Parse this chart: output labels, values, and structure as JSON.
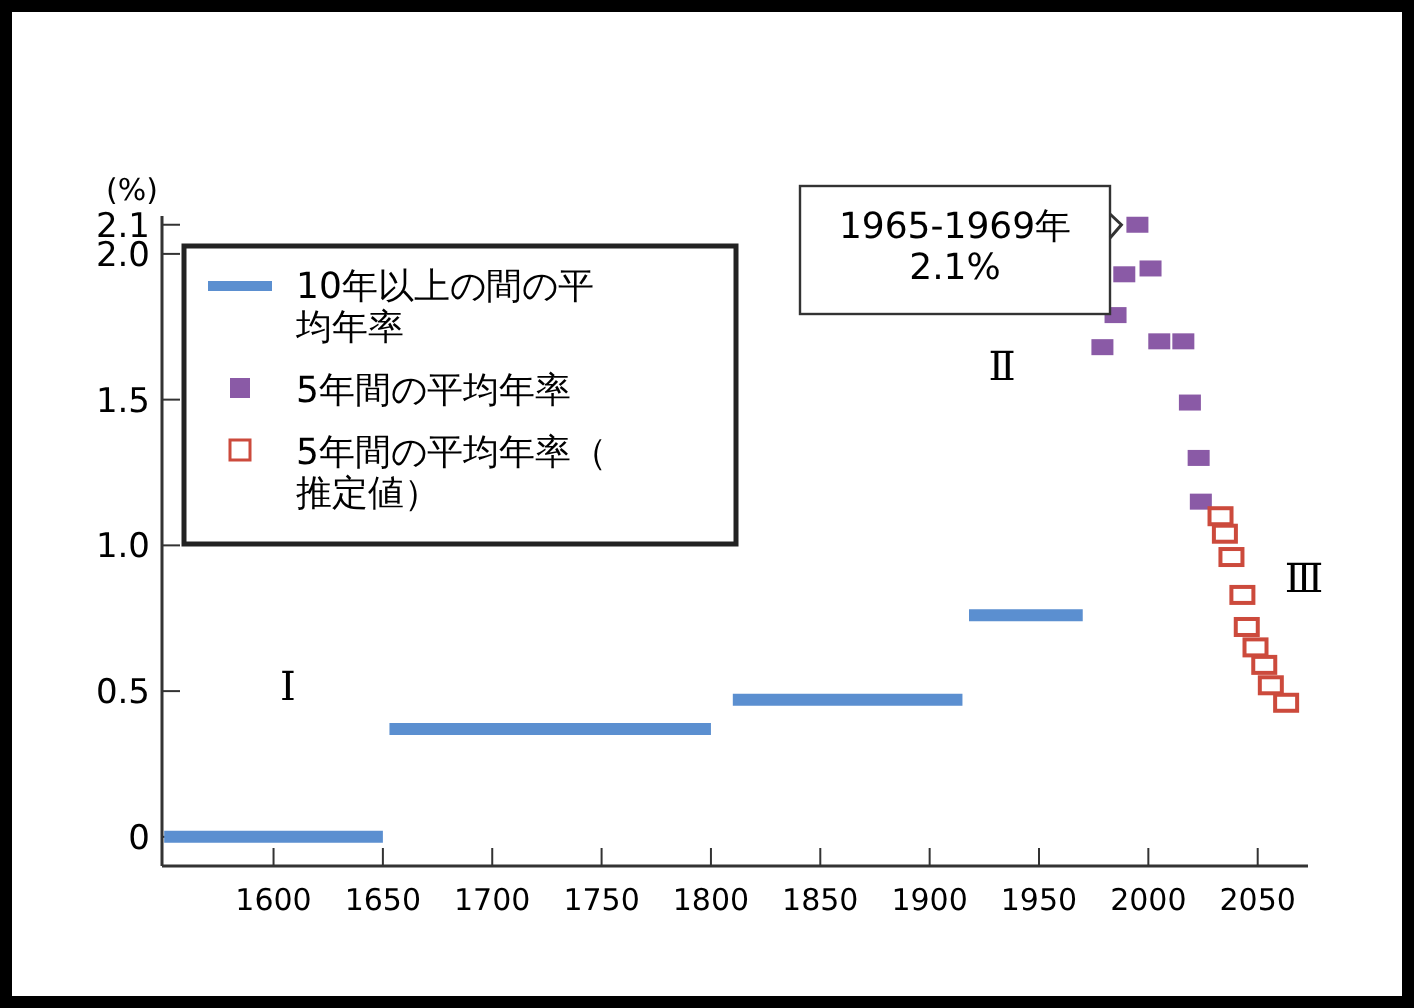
{
  "chart_data": {
    "type": "scatter",
    "ylabel": "(%)",
    "xlim": [
      1549,
      2073
    ],
    "ylim": [
      -0.1,
      2.13
    ],
    "xticks": [
      1600,
      1650,
      1700,
      1750,
      1800,
      1850,
      1900,
      1950,
      2000,
      2050
    ],
    "yticks": [
      0,
      0.5,
      {
        "value": 1,
        "label": "1.0"
      },
      1.5,
      {
        "value": 2,
        "label": "2.0"
      },
      2.1
    ],
    "legend": "top left",
    "series": [
      {
        "name": "10年以上の間の平均年率",
        "type": "line",
        "marker": "none",
        "color": "#5b8fd0",
        "x": [
          1550,
          1650,
          1651,
          1653,
          1800,
          1805,
          1810,
          1915,
          1916,
          1918,
          1970
        ],
        "values": [
          0,
          0,
          null,
          0.37,
          0.37,
          null,
          0.47,
          0.47,
          null,
          0.76,
          0.76
        ]
      },
      {
        "name": "5年間の平均年率",
        "marker": "square",
        "color": "#8a5aa6",
        "x": [
          1979,
          1985,
          1989,
          1995,
          2001,
          2005,
          2016,
          2019,
          2023,
          2024
        ],
        "values": [
          1.68,
          1.79,
          1.93,
          2.1,
          1.95,
          1.7,
          1.7,
          1.49,
          1.3,
          1.15
        ]
      },
      {
        "name": "5年間の平均年率（推定値）",
        "marker": "square",
        "color": "#cc4a3c",
        "x": [
          2033,
          2035,
          2038,
          2043,
          2045,
          2049,
          2053,
          2056,
          2063
        ],
        "values": [
          1.1,
          1.04,
          0.96,
          0.83,
          0.72,
          0.65,
          0.59,
          0.52,
          0.46
        ]
      }
    ],
    "annotations": [
      {
        "text": "1965-1969年\n2.1%",
        "x": 1995,
        "y": 2.1
      },
      "Ⅰ",
      "Ⅱ",
      "Ⅲ"
    ]
  }
}
